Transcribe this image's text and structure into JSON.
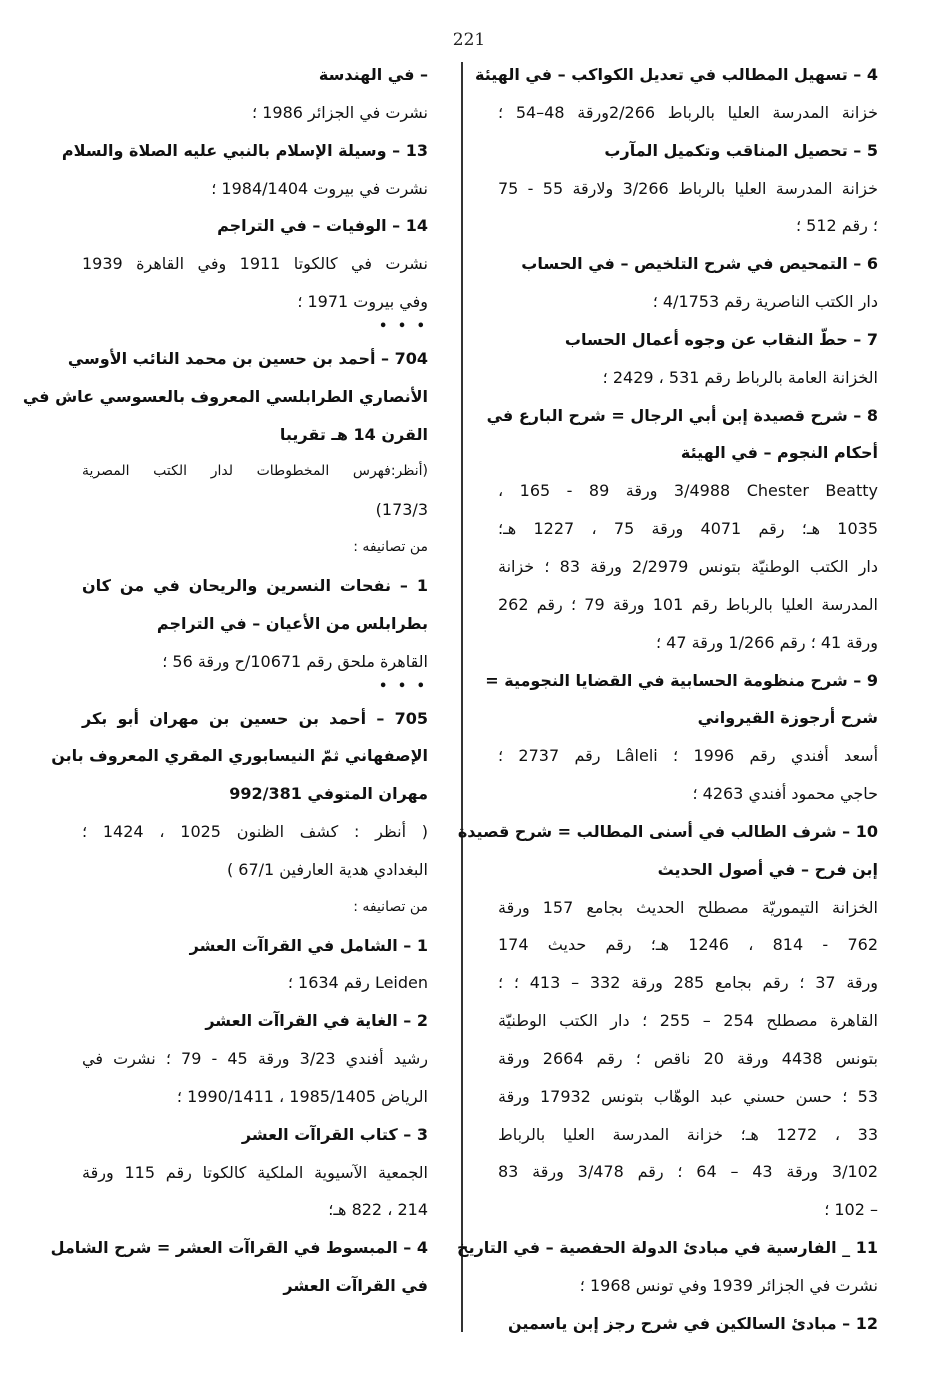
{
  "page_number": "221",
  "right_column": [
    "4 – تسهيل المطالب في تعديل الكواكب – في الهيئة",
    "خزانة المدرسة العليا بالرباط 2/266ورقة 48–54 ؛",
    "5 – تحصيل المناقب وتكميل المآرب",
    "خزانة المدرسة العليا بالرباط 3/266 ولارقة 55 - 75",
    "؛ رقم 512 ؛",
    "6 – التمحيص في شرح التلخيص – في الحساب",
    "دار الكتب الناصرية رقم 4/1753 ؛",
    "7 – حطّ النقاب عن وجوه أعمال الحساب",
    "الخزانة العامة بالرباط رقم 531 ، 2429 ؛",
    "8 – شرح قصيدة إبن أبي الرجال = شرح البارع في",
    "أحكام النجوم – في الهيئة",
    "Chester Beatty‏ 3/4988 ورقة 89 - 165 ،",
    "1035 هـ؛ رقم 4071 ورقة 75 ، 1227 هـ؛",
    "دار الكتب الوطنيّة بتونس 2/2979 ورقة 83 ؛ خزانة",
    "المدرسة العليا بالرباط رقم 101 ورقة 79 ؛ رقم 262",
    "ورقة 41 ؛ رقم 1/266 ورقة 47 ؛",
    "9 – شرح منظومة الحسابية في القضايا النجومية =",
    "شرح أرجوزة القيرواني",
    "أسعد أفندي رقم 1996 ؛ Lâleli رقم 2737 ؛",
    "حاجي محمود أفندي 4263 ؛",
    "10 – شرف الطالب في أسنى المطالب = شرح قصيدة",
    "إبن فرح – في أصول الحديث",
    "الخزانة التيموريّة مصطلح الحديث بجامع 157 ورقة",
    "762 - 814 ، 1246 هـ؛ رقم حديث 174",
    "ورقة 37 ؛ رقم بجامع 285 ورقة 332 – 413 ؛ ؛",
    "القاهرة مصطلح 254 – 255 ؛ دار الكتب الوطنيّة",
    "بتونس 4438 ورقة 20 ناقص ؛ رقم 2664 ورقة",
    "53 ؛ حسن حسني عبد الوهّاب بتونس 17932 ورقة",
    "33 ، 1272 هـ؛ خزانة المدرسة العليا بالرباط",
    "3/102 ورقة 43 – 64 ؛ رقم 3/478 ورقة 83",
    "– 102 ؛",
    "11 _ الفارسية في مبادئ الدولة الحفصية – في التاريخ",
    "نشرت في الجزائر 1939 وفي تونس 1968 ؛",
    "12 – مبادئ السالكين في شرح رجز إبن ياسمين"
  ],
  "left_column": [
    "– في الهندسة",
    "نشرت في الجزائر 1986 ؛",
    "13 – وسيلة الإسلام بالنبي عليه الصلاة والسلام",
    "نشرت في بيروت 1984/1404 ؛",
    "14 – الوفيات – في التراجم",
    "نشرت في كالكوتا 1911 وفي القاهرة 1939",
    "وفي بيروت 1971 ؛",
    "• • •",
    "704 – أحمد بن حسين بن محمد النائب الأوسي",
    "الأنصاري الطرابلسي المعروف بالعسوسي عاش في",
    "القرن 14 هـ تقريبا",
    "(أنظر:فهرس المخطوطات لدار الكتب المصرية",
    "173/3)",
    "من تصانيفه :",
    "1 – نفحات النسرين والريحان في من كان",
    "بطرابلس من الأعيان – في التراجم",
    "القاهرة ملحق رقم 10671/ح ورقة 56 ؛",
    "• • •",
    "705 – أحمد بن حسين بن مهران أبو بكر",
    "الإصفهاني ثمّ النيسابوري المقري المعروف بابن",
    "مهران المتوفي 992/381",
    "( أنظر : كشف الظنون 1025 ، 1424 ؛",
    "البغدادي هدية العارفين 67/1 )",
    "من تصانيفه :",
    "1 – الشامل في القراآت العشر",
    "Leiden رقم 1634 ؛",
    "2 – الغاية في القراآت العشر",
    "رشيد أفندي 3/23 ورقة 45 - 79 ؛ نشرت في",
    "الرياض 1985/1405 ، 1990/1411 ؛",
    "3 – كتاب القراآت العشر",
    "الجمعية الآسيوية الملكية كالكوتا رقم 115 ورقة",
    "214 ، 822 هـ؛",
    "4 – المبسوط في القراآت العشر = شرح الشامل",
    "في القراآت العشر"
  ]
}
